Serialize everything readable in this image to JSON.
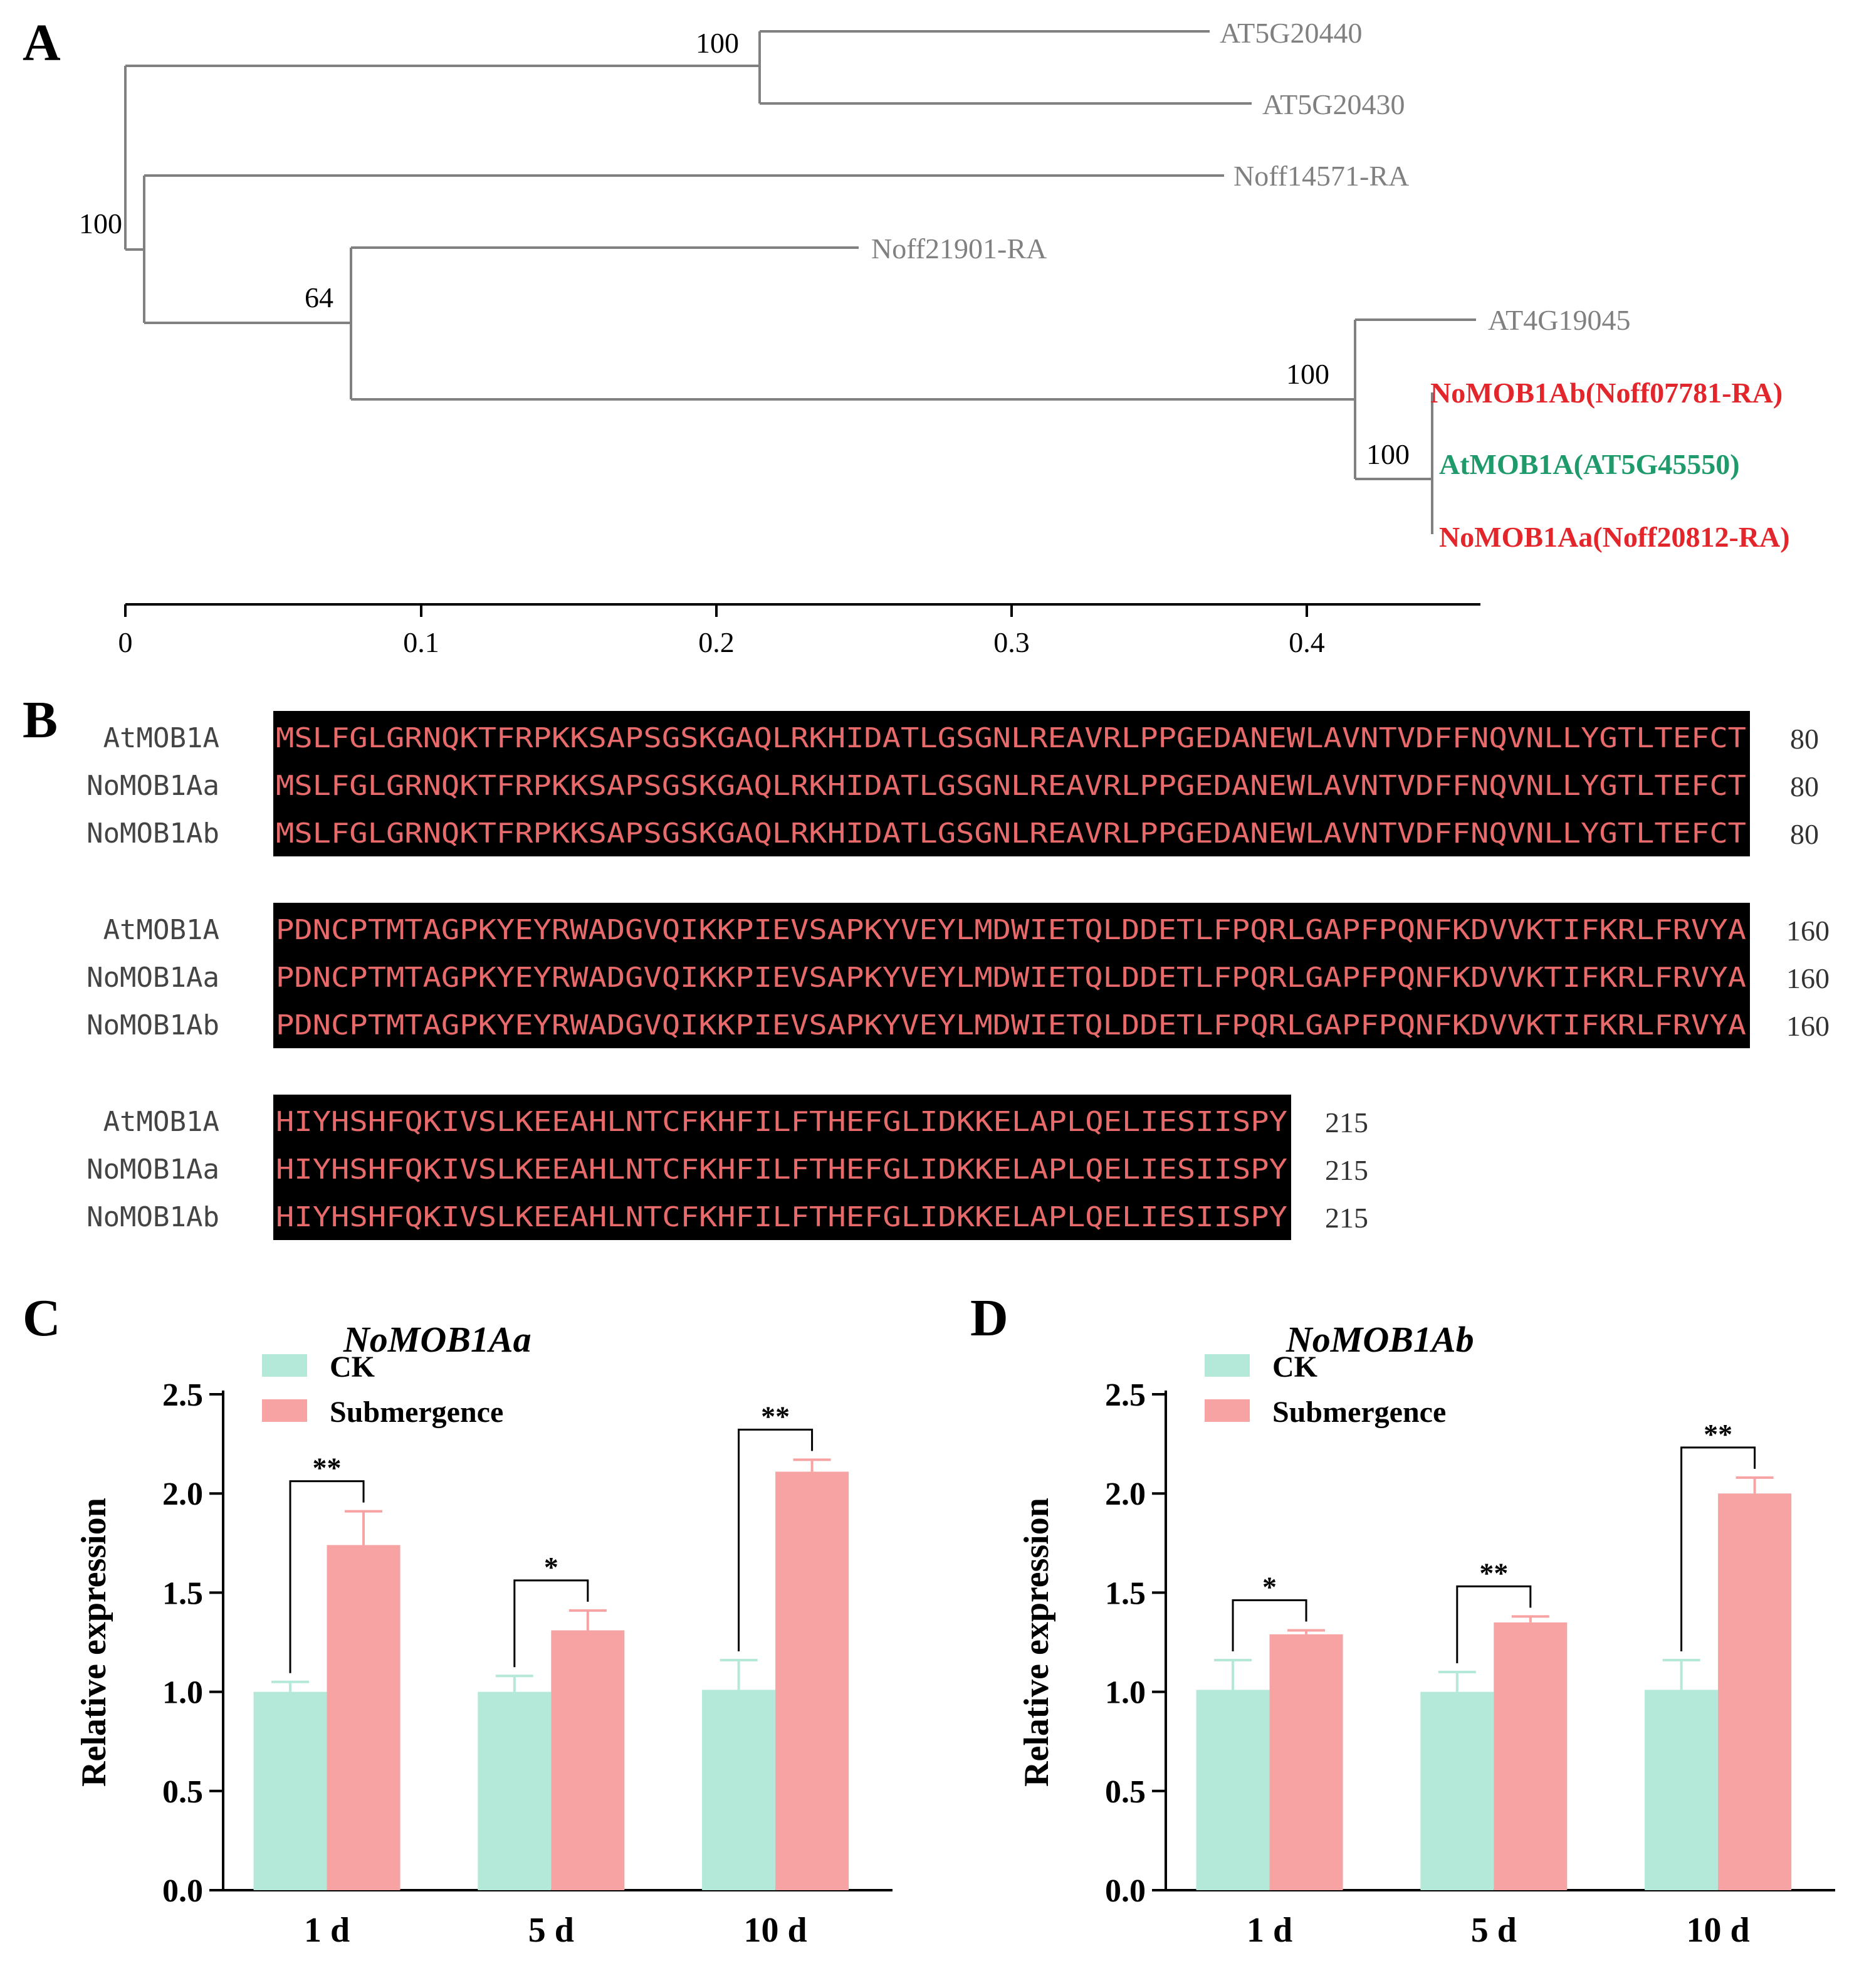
{
  "panels": {
    "a": "A",
    "b": "B",
    "c": "C",
    "d": "D"
  },
  "colors": {
    "ck": "#b4e8d8",
    "submergence": "#f7a3a3",
    "highlight_red": "#e3262b",
    "highlight_green": "#1f9a6a",
    "branch": "#808080"
  },
  "tree": {
    "leaves": [
      {
        "label": "AT5G20440",
        "style": "normal"
      },
      {
        "label": "AT5G20430",
        "style": "normal"
      },
      {
        "label": "Noff14571-RA",
        "style": "normal"
      },
      {
        "label": "Noff21901-RA",
        "style": "normal"
      },
      {
        "label": "AT4G19045",
        "style": "normal"
      },
      {
        "label": "NoMOB1Ab(Noff07781-RA)",
        "style": "red"
      },
      {
        "label": "AtMOB1A(AT5G45550)",
        "style": "green"
      },
      {
        "label": "NoMOB1Aa(Noff20812-RA)",
        "style": "red"
      }
    ],
    "bootstrap": [
      "100",
      "100",
      "64",
      "100",
      "100"
    ],
    "scale_ticks": [
      "0",
      "0.1",
      "0.2",
      "0.3",
      "0.4"
    ]
  },
  "alignment": {
    "blocks": [
      {
        "rows": [
          {
            "name": "AtMOB1A",
            "seq": "MSLFGLGRNQKTFRPKKSAPSGSKGAQLRKHIDATLGSGNLREAVRLPPGEDANEWLAVNTVDFFNQVNLLYGTLTEFCT",
            "end": "80"
          },
          {
            "name": "NoMOB1Aa",
            "seq": "MSLFGLGRNQKTFRPKKSAPSGSKGAQLRKHIDATLGSGNLREAVRLPPGEDANEWLAVNTVDFFNQVNLLYGTLTEFCT",
            "end": "80"
          },
          {
            "name": "NoMOB1Ab",
            "seq": "MSLFGLGRNQKTFRPKKSAPSGSKGAQLRKHIDATLGSGNLREAVRLPPGEDANEWLAVNTVDFFNQVNLLYGTLTEFCT",
            "end": "80"
          }
        ]
      },
      {
        "rows": [
          {
            "name": "AtMOB1A",
            "seq": "PDNCPTMTAGPKYEYRWADGVQIKKPIEVSAPKYVEYLMDWIETQLDDETLFPQRLGAPFPQNFKDVVKTIFKRLFRVYA",
            "end": "160"
          },
          {
            "name": "NoMOB1Aa",
            "seq": "PDNCPTMTAGPKYEYRWADGVQIKKPIEVSAPKYVEYLMDWIETQLDDETLFPQRLGAPFPQNFKDVVKTIFKRLFRVYA",
            "end": "160"
          },
          {
            "name": "NoMOB1Ab",
            "seq": "PDNCPTMTAGPKYEYRWADGVQIKKPIEVSAPKYVEYLMDWIETQLDDETLFPQRLGAPFPQNFKDVVKTIFKRLFRVYA",
            "end": "160"
          }
        ]
      },
      {
        "rows": [
          {
            "name": "AtMOB1A",
            "seq": "HIYHSHFQKIVSLKEEAHLNTCFKHFILFTHEFGLIDKKELAPLQELIESIISPY",
            "end": "215"
          },
          {
            "name": "NoMOB1Aa",
            "seq": "HIYHSHFQKIVSLKEEAHLNTCFKHFILFTHEFGLIDKKELAPLQELIESIISPY",
            "end": "215"
          },
          {
            "name": "NoMOB1Ab",
            "seq": "HIYHSHFQKIVSLKEEAHLNTCFKHFILFTHEFGLIDKKELAPLQELIESIISPY",
            "end": "215"
          }
        ]
      }
    ]
  },
  "chart_data": [
    {
      "type": "bar",
      "title": "NoMOB1Aa",
      "categories": [
        "1 d",
        "5 d",
        "10 d"
      ],
      "series": [
        {
          "name": "CK",
          "values": [
            1.0,
            1.0,
            1.01
          ],
          "errors": [
            0.05,
            0.08,
            0.15
          ]
        },
        {
          "name": "Submergence",
          "values": [
            1.74,
            1.31,
            2.11
          ],
          "errors": [
            0.17,
            0.1,
            0.06
          ]
        }
      ],
      "significance": [
        "**",
        "*",
        "**"
      ],
      "ylabel": "Relative expression",
      "ylim": [
        0,
        2.5
      ],
      "yticks": [
        "0.0",
        "0.5",
        "1.0",
        "1.5",
        "2.0",
        "2.5"
      ],
      "legend": "top-left"
    },
    {
      "type": "bar",
      "title": "NoMOB1Ab",
      "categories": [
        "1 d",
        "5 d",
        "10 d"
      ],
      "series": [
        {
          "name": "CK",
          "values": [
            1.01,
            1.0,
            1.01
          ],
          "errors": [
            0.15,
            0.1,
            0.15
          ]
        },
        {
          "name": "Submergence",
          "values": [
            1.29,
            1.35,
            2.0
          ],
          "errors": [
            0.02,
            0.03,
            0.08
          ]
        }
      ],
      "significance": [
        "*",
        "**",
        "**"
      ],
      "ylabel": "Relative expression",
      "ylim": [
        0,
        2.5
      ],
      "yticks": [
        "0.0",
        "0.5",
        "1.0",
        "1.5",
        "2.0",
        "2.5"
      ],
      "legend": "top-left"
    }
  ]
}
